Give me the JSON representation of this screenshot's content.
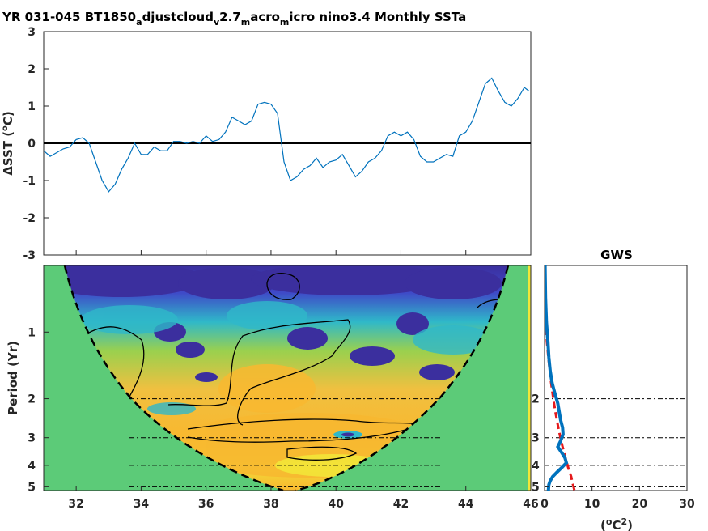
{
  "title": {
    "parts": [
      {
        "t": "YR 031-045 BT1850",
        "sub": false
      },
      {
        "t": "a",
        "sub": true
      },
      {
        "t": "djustcloud",
        "sub": false
      },
      {
        "t": "v",
        "sub": true
      },
      {
        "t": "2.7",
        "sub": false
      },
      {
        "t": "m",
        "sub": true
      },
      {
        "t": "acro",
        "sub": false
      },
      {
        "t": "m",
        "sub": true
      },
      {
        "t": "icro nino3.4 Monthly SSTa",
        "sub": false
      }
    ]
  },
  "colors": {
    "series_line": "#0072bd",
    "zero_line": "#000000",
    "coi_fill": "#5ccb78",
    "gws_line": "#0072bd",
    "gws_sig": "#e41a1c",
    "wavelet_low": "#3b2f9e",
    "wavelet_mid": "#2fb8c9",
    "wavelet_high": "#f8b830"
  },
  "chart_data": [
    {
      "type": "line",
      "title": "YR 031-045 BT1850_adjustcloud_v2.7_macro_micro nino3.4 Monthly SSTa",
      "ylabel": "ΔSST (°C)",
      "xlim": [
        31,
        46
      ],
      "ylim": [
        -3,
        3
      ],
      "yticks": [
        "3",
        "2",
        "1",
        "0",
        "-1",
        "-2",
        "-3"
      ],
      "ytick_values": [
        3,
        2,
        1,
        0,
        -1,
        -2,
        -3
      ],
      "zero_line": true,
      "x": [
        31.0,
        31.2,
        31.4,
        31.6,
        31.8,
        32.0,
        32.2,
        32.4,
        32.6,
        32.8,
        33.0,
        33.2,
        33.4,
        33.6,
        33.8,
        34.0,
        34.2,
        34.4,
        34.6,
        34.8,
        35.0,
        35.2,
        35.4,
        35.6,
        35.8,
        36.0,
        36.2,
        36.4,
        36.6,
        36.8,
        37.0,
        37.2,
        37.4,
        37.6,
        37.8,
        38.0,
        38.2,
        38.4,
        38.6,
        38.8,
        39.0,
        39.2,
        39.4,
        39.6,
        39.8,
        40.0,
        40.2,
        40.4,
        40.6,
        40.8,
        41.0,
        41.2,
        41.4,
        41.6,
        41.8,
        42.0,
        42.2,
        42.4,
        42.6,
        42.8,
        43.0,
        43.2,
        43.4,
        43.6,
        43.8,
        44.0,
        44.2,
        44.4,
        44.6,
        44.8,
        45.0,
        45.2,
        45.4,
        45.6,
        45.8,
        45.95
      ],
      "y": [
        -0.2,
        -0.35,
        -0.25,
        -0.15,
        -0.1,
        0.1,
        0.15,
        0.0,
        -0.5,
        -1.0,
        -1.3,
        -1.1,
        -0.7,
        -0.4,
        0.0,
        -0.3,
        -0.3,
        -0.1,
        -0.2,
        -0.2,
        0.05,
        0.05,
        0.0,
        0.05,
        0.0,
        0.2,
        0.05,
        0.1,
        0.3,
        0.7,
        0.6,
        0.5,
        0.6,
        1.05,
        1.1,
        1.05,
        0.8,
        -0.5,
        -1.0,
        -0.9,
        -0.7,
        -0.6,
        -0.4,
        -0.65,
        -0.5,
        -0.45,
        -0.3,
        -0.6,
        -0.9,
        -0.75,
        -0.5,
        -0.4,
        -0.2,
        0.2,
        0.3,
        0.2,
        0.3,
        0.1,
        -0.35,
        -0.5,
        -0.5,
        -0.4,
        -0.3,
        -0.35,
        0.2,
        0.3,
        0.6,
        1.1,
        1.6,
        1.75,
        1.4,
        1.1,
        1.0,
        1.2,
        1.5,
        1.4
      ]
    },
    {
      "type": "heatmap",
      "title": "",
      "ylabel": "Period (Yr)",
      "xlim": [
        31,
        46
      ],
      "ylim": [
        0.5,
        5.2
      ],
      "xticks": [
        "32",
        "34",
        "36",
        "38",
        "40",
        "42",
        "44",
        "46"
      ],
      "xtick_values": [
        32,
        34,
        36,
        38,
        40,
        42,
        44,
        46
      ],
      "yticks": [
        "1",
        "2",
        "3",
        "4",
        "5"
      ],
      "ytick_values": [
        1,
        2,
        3,
        4,
        5
      ],
      "yscale": "log",
      "reference_periods": [
        2,
        3,
        4,
        5
      ]
    },
    {
      "type": "line",
      "title": "GWS",
      "xlabel": "(°C²)",
      "xlabel_parts": [
        {
          "t": "(",
          "sup": false
        },
        {
          "t": "o",
          "sup": true
        },
        {
          "t": "C",
          "sup": false
        },
        {
          "t": "2",
          "sup": true
        },
        {
          "t": ")",
          "sup": false
        }
      ],
      "xlim": [
        0,
        30
      ],
      "xticks": [
        "0",
        "10",
        "20",
        "30"
      ],
      "xtick_values": [
        0,
        10,
        20,
        30
      ],
      "yticks": [
        "2",
        "3",
        "4",
        "5"
      ],
      "ytick_values": [
        2,
        3,
        4,
        5
      ],
      "series": [
        {
          "period": [
            0.5,
            0.7,
            0.9,
            1.1,
            1.3,
            1.5,
            1.7,
            1.9,
            2.1,
            2.3,
            2.5,
            2.7,
            2.9,
            3.1,
            3.3,
            3.5,
            3.7,
            3.9,
            4.1,
            4.3,
            4.5,
            4.7,
            4.9,
            5.2
          ],
          "value": [
            0.1,
            0.2,
            0.4,
            0.7,
            0.9,
            1.2,
            1.6,
            2.2,
            2.8,
            3.1,
            3.4,
            3.8,
            3.9,
            3.4,
            2.8,
            3.6,
            4.3,
            4.6,
            3.6,
            2.6,
            1.7,
            1.2,
            0.9,
            0.8
          ]
        },
        {
          "period": [
            0.5,
            0.7,
            0.9,
            1.1,
            1.3,
            1.5,
            1.7,
            1.9,
            2.1,
            2.3,
            2.5,
            2.7,
            2.9,
            3.1,
            3.3,
            3.5,
            3.7,
            3.9,
            4.1,
            4.3,
            4.5,
            4.7,
            4.9,
            5.2
          ],
          "value": [
            0.0,
            0.1,
            0.3,
            0.5,
            0.8,
            1.1,
            1.4,
            1.7,
            2.0,
            2.3,
            2.6,
            2.9,
            3.2,
            3.5,
            3.8,
            4.1,
            4.4,
            4.7,
            5.0,
            5.3,
            5.6,
            5.8,
            6.0,
            6.3
          ]
        }
      ]
    }
  ]
}
